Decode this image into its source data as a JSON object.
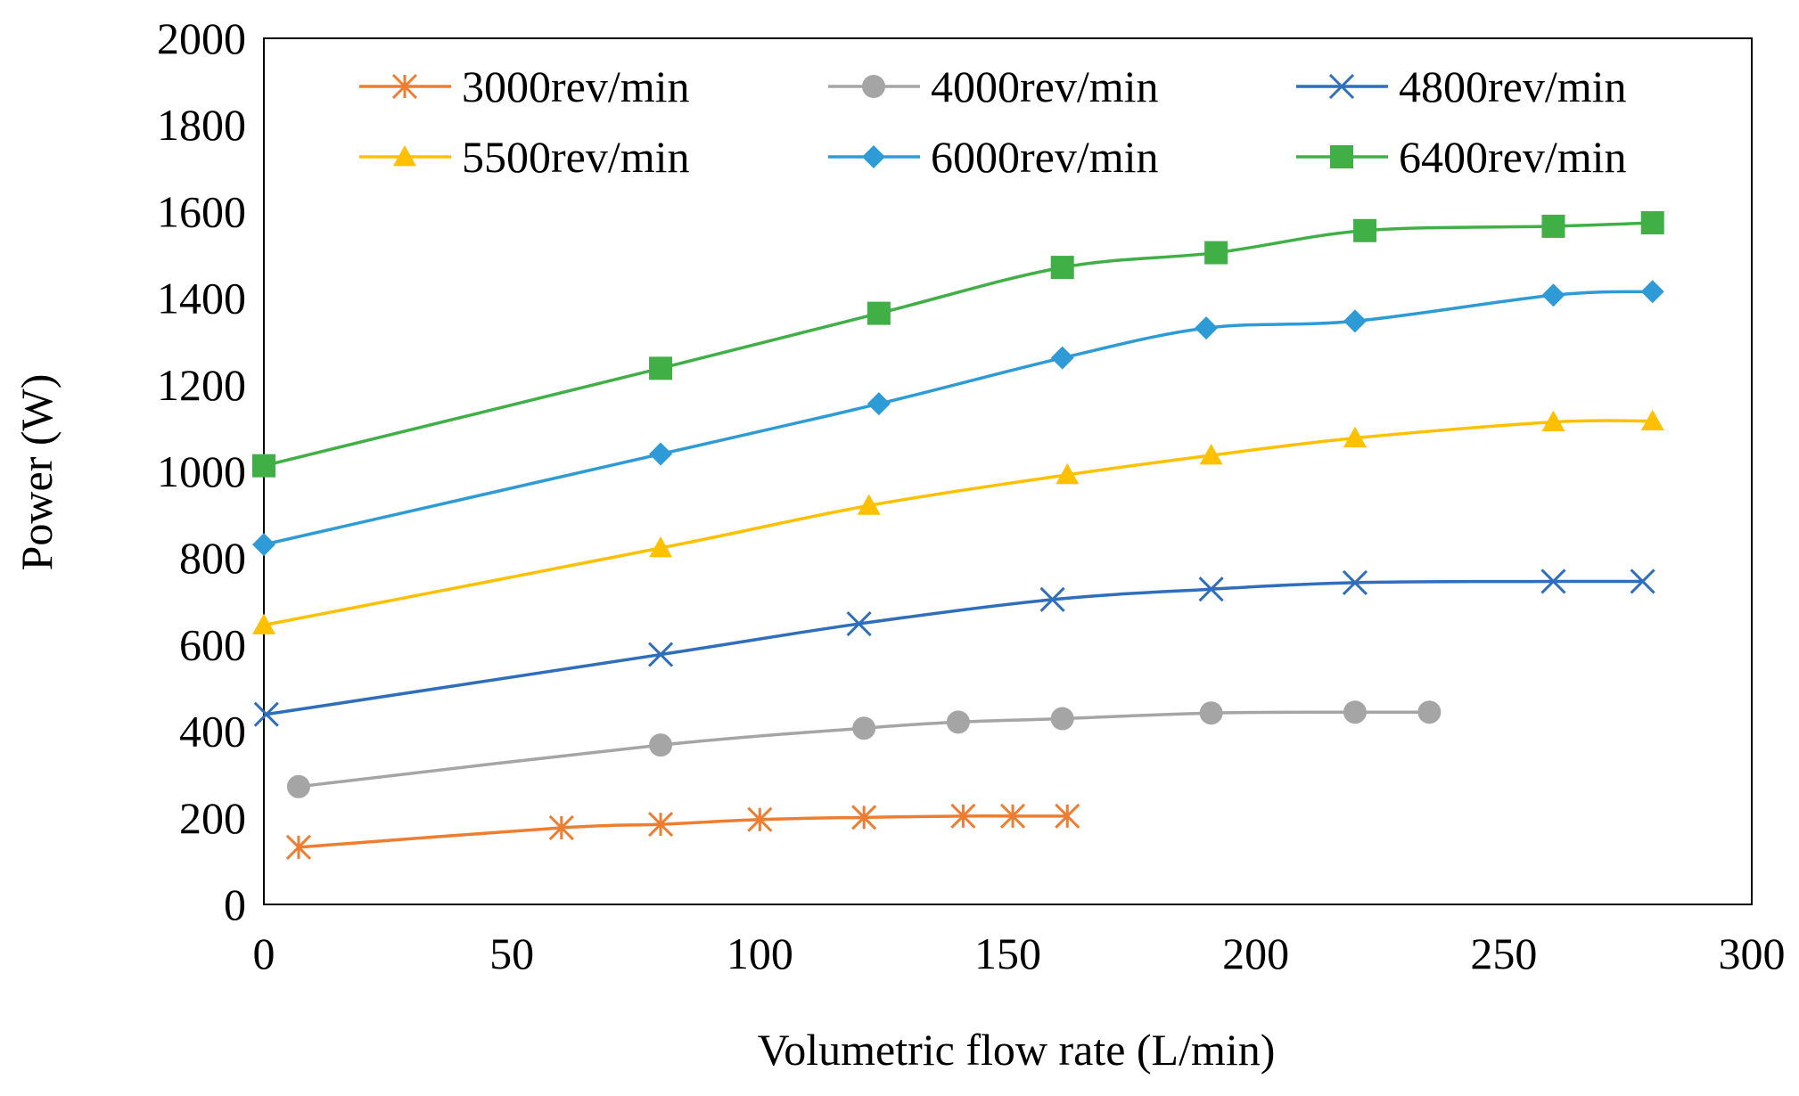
{
  "chart_data": {
    "type": "line",
    "title": "",
    "xlabel": "Volumetric flow rate (L/min)",
    "ylabel": "Power (W)",
    "xlim": [
      0,
      300
    ],
    "ylim": [
      0,
      2000
    ],
    "xticks": [
      "0",
      "50",
      "100",
      "150",
      "200",
      "250",
      "300"
    ],
    "yticks": [
      "0",
      "200",
      "400",
      "600",
      "800",
      "1000",
      "1200",
      "1400",
      "1600",
      "1800",
      "2000"
    ],
    "grid": false,
    "legend_position": "top",
    "series": [
      {
        "name": "3000rev/min",
        "color": "#ED7D31",
        "marker": "asterisk",
        "x": [
          7,
          60,
          80,
          100,
          121,
          141,
          151,
          162
        ],
        "y": [
          132,
          177,
          185,
          196,
          201,
          204,
          204,
          204
        ]
      },
      {
        "name": "4000rev/min",
        "color": "#A5A5A5",
        "marker": "circle",
        "x": [
          7,
          80,
          121,
          140,
          161,
          191,
          220,
          235
        ],
        "y": [
          272,
          368,
          407,
          421,
          429,
          442,
          444,
          444
        ]
      },
      {
        "name": "4800rev/min",
        "color": "#2F6EBA",
        "marker": "x",
        "x": [
          0.5,
          80,
          120,
          159,
          191,
          220,
          260,
          278
        ],
        "y": [
          439,
          577,
          648,
          704,
          728,
          743,
          746,
          746
        ]
      },
      {
        "name": "5500rev/min",
        "color": "#FFC000",
        "marker": "triangle",
        "x": [
          0,
          80,
          122,
          162,
          191,
          220,
          260,
          280
        ],
        "y": [
          645,
          823,
          921,
          992,
          1037,
          1077,
          1114,
          1116
        ]
      },
      {
        "name": "6000rev/min",
        "color": "#2E9BD6",
        "marker": "diamond",
        "x": [
          0,
          80,
          124,
          161,
          190,
          220,
          260,
          280
        ],
        "y": [
          831,
          1040,
          1156,
          1262,
          1331,
          1347,
          1407,
          1415
        ]
      },
      {
        "name": "6400rev/min",
        "color": "#3FAF46",
        "marker": "square",
        "x": [
          0,
          80,
          124,
          161,
          192,
          222,
          260,
          280
        ],
        "y": [
          1013,
          1238,
          1365,
          1471,
          1505,
          1556,
          1566,
          1574
        ]
      }
    ]
  }
}
